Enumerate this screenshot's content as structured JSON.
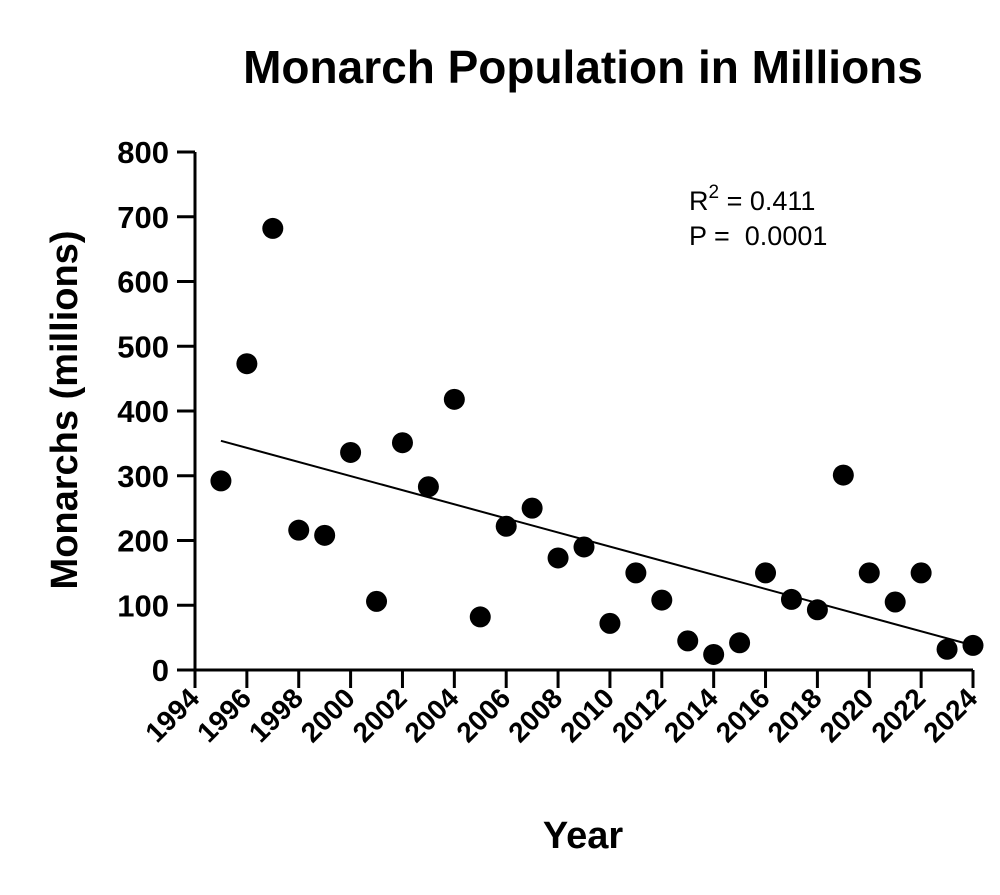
{
  "chart_data": {
    "type": "scatter",
    "title": "Monarch Population in Millions",
    "xlabel": "Year",
    "ylabel": "Monarchs (millions)",
    "xlim": [
      1994,
      2024
    ],
    "ylim": [
      0,
      800
    ],
    "x_ticks": [
      1994,
      1996,
      1998,
      2000,
      2002,
      2004,
      2006,
      2008,
      2010,
      2012,
      2014,
      2016,
      2018,
      2020,
      2022,
      2024
    ],
    "y_ticks": [
      0,
      100,
      200,
      300,
      400,
      500,
      600,
      700,
      800
    ],
    "grid": false,
    "legend": "none",
    "series": [
      {
        "x": [
          1995,
          1996,
          1997,
          1998,
          1999,
          2000,
          2001,
          2002,
          2003,
          2004,
          2005,
          2006,
          2007,
          2008,
          2009,
          2010,
          2011,
          2012,
          2013,
          2014,
          2015,
          2016,
          2017,
          2018,
          2019,
          2020,
          2021,
          2022,
          2023,
          2024
        ],
        "y": [
          292,
          473,
          682,
          216,
          208,
          336,
          106,
          351,
          283,
          418,
          82,
          222,
          250,
          173,
          190,
          72,
          150,
          108,
          45,
          24,
          42,
          150,
          109,
          93,
          301,
          150,
          105,
          150,
          32,
          38
        ],
        "color": "#000000"
      }
    ],
    "trendline": {
      "x": [
        1995,
        2024
      ],
      "y": [
        354,
        38
      ],
      "color": "#000000"
    },
    "annotations": {
      "r2_prefix": "R",
      "r2_sup": "2",
      "r2_value": " = 0.411",
      "p_line": "P =  0.0001"
    }
  }
}
